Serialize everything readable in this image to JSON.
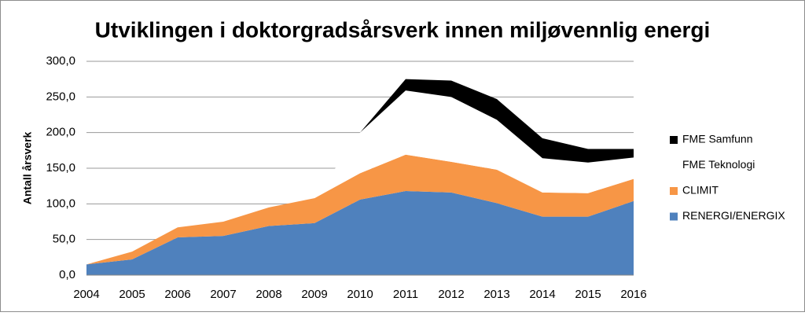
{
  "chart_data": {
    "type": "stacked-area",
    "title": "Utviklingen i doktorgradsårsverk innen miljøvennlig energi",
    "y_label": "Antall årsverk",
    "categories": [
      "2004",
      "2005",
      "2006",
      "2007",
      "2008",
      "2009",
      "2010",
      "2011",
      "2012",
      "2013",
      "2014",
      "2015",
      "2016"
    ],
    "series": [
      {
        "name": "RENERGI/ENERGIX",
        "color": "#4f81bd",
        "values": [
          15,
          22,
          53,
          55,
          69,
          73,
          106,
          118,
          116,
          101,
          82,
          82,
          104
        ]
      },
      {
        "name": "CLIMIT",
        "color": "#f79646",
        "values": [
          0,
          11,
          14,
          20,
          26,
          35,
          37,
          51,
          43,
          47,
          34,
          33,
          31
        ]
      },
      {
        "name": "FME Teknologi",
        "color": "#ffffff",
        "values": [
          0,
          0,
          0,
          0,
          0,
          0,
          57,
          90,
          91,
          70,
          48,
          43,
          30
        ]
      },
      {
        "name": "FME Samfunn",
        "color": "#000000",
        "values": [
          0,
          0,
          0,
          0,
          0,
          0,
          0,
          16,
          23,
          29,
          28,
          19,
          12
        ]
      }
    ],
    "ylim": [
      0,
      300
    ],
    "yticks": [
      {
        "value": 0,
        "label": "0,0"
      },
      {
        "value": 50,
        "label": "50,0"
      },
      {
        "value": 100,
        "label": "100,0"
      },
      {
        "value": 150,
        "label": "150,0"
      },
      {
        "value": 200,
        "label": "200,0"
      },
      {
        "value": 250,
        "label": "250,0"
      },
      {
        "value": 300,
        "label": "300,0"
      }
    ],
    "grid": true,
    "legend": "right"
  }
}
